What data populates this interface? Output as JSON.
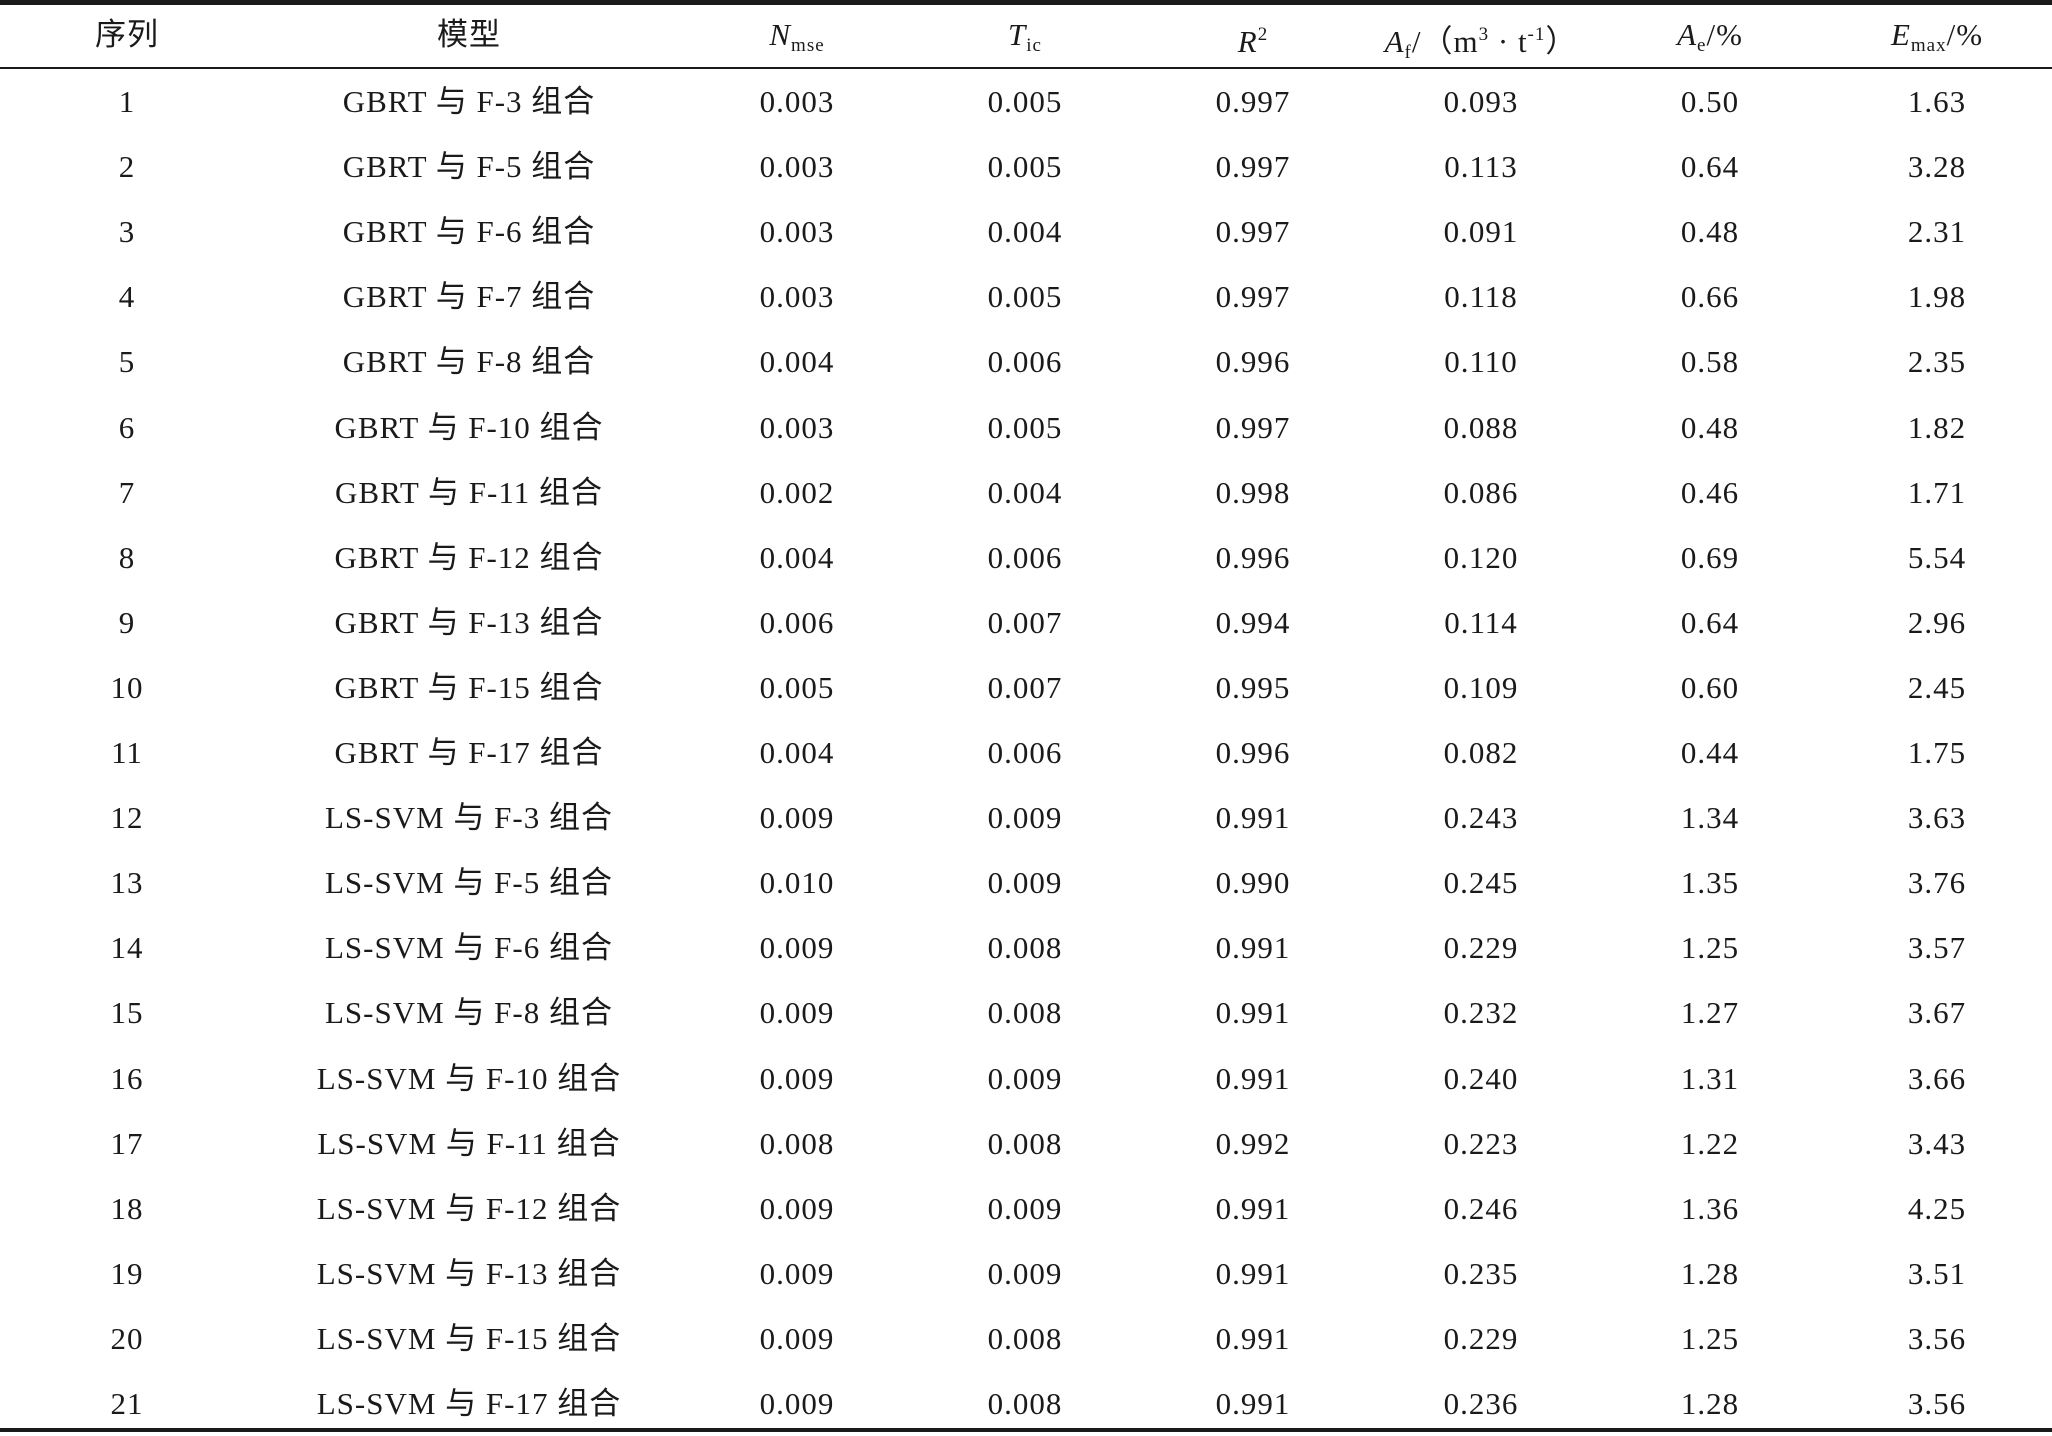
{
  "table": {
    "headers": {
      "seq": "序列",
      "model": "模型",
      "nmse_main": "N",
      "nmse_sub": "mse",
      "tic_main": "T",
      "tic_sub": "ic",
      "r2_main": "R",
      "r2_sup": "2",
      "af_main": "A",
      "af_sub": "f",
      "af_unit_a": "/（m",
      "af_unit_sup1": "3",
      "af_unit_b": " · t",
      "af_unit_sup2": "-1",
      "af_unit_c": "）",
      "ae_main": "A",
      "ae_sub": "e",
      "ae_unit": "/%",
      "emax_main": "E",
      "emax_sub": "max",
      "emax_unit": "/%"
    },
    "rows": [
      [
        "1",
        "GBRT 与 F-3 组合",
        "0.003",
        "0.005",
        "0.997",
        "0.093",
        "0.50",
        "1.63"
      ],
      [
        "2",
        "GBRT 与 F-5 组合",
        "0.003",
        "0.005",
        "0.997",
        "0.113",
        "0.64",
        "3.28"
      ],
      [
        "3",
        "GBRT 与 F-6 组合",
        "0.003",
        "0.004",
        "0.997",
        "0.091",
        "0.48",
        "2.31"
      ],
      [
        "4",
        "GBRT 与 F-7 组合",
        "0.003",
        "0.005",
        "0.997",
        "0.118",
        "0.66",
        "1.98"
      ],
      [
        "5",
        "GBRT 与 F-8 组合",
        "0.004",
        "0.006",
        "0.996",
        "0.110",
        "0.58",
        "2.35"
      ],
      [
        "6",
        "GBRT 与 F-10 组合",
        "0.003",
        "0.005",
        "0.997",
        "0.088",
        "0.48",
        "1.82"
      ],
      [
        "7",
        "GBRT 与 F-11 组合",
        "0.002",
        "0.004",
        "0.998",
        "0.086",
        "0.46",
        "1.71"
      ],
      [
        "8",
        "GBRT 与 F-12 组合",
        "0.004",
        "0.006",
        "0.996",
        "0.120",
        "0.69",
        "5.54"
      ],
      [
        "9",
        "GBRT 与 F-13 组合",
        "0.006",
        "0.007",
        "0.994",
        "0.114",
        "0.64",
        "2.96"
      ],
      [
        "10",
        "GBRT 与 F-15 组合",
        "0.005",
        "0.007",
        "0.995",
        "0.109",
        "0.60",
        "2.45"
      ],
      [
        "11",
        "GBRT 与 F-17 组合",
        "0.004",
        "0.006",
        "0.996",
        "0.082",
        "0.44",
        "1.75"
      ],
      [
        "12",
        "LS-SVM 与 F-3 组合",
        "0.009",
        "0.009",
        "0.991",
        "0.243",
        "1.34",
        "3.63"
      ],
      [
        "13",
        "LS-SVM 与 F-5 组合",
        "0.010",
        "0.009",
        "0.990",
        "0.245",
        "1.35",
        "3.76"
      ],
      [
        "14",
        "LS-SVM 与 F-6 组合",
        "0.009",
        "0.008",
        "0.991",
        "0.229",
        "1.25",
        "3.57"
      ],
      [
        "15",
        "LS-SVM 与 F-8 组合",
        "0.009",
        "0.008",
        "0.991",
        "0.232",
        "1.27",
        "3.67"
      ],
      [
        "16",
        "LS-SVM 与 F-10 组合",
        "0.009",
        "0.009",
        "0.991",
        "0.240",
        "1.31",
        "3.66"
      ],
      [
        "17",
        "LS-SVM 与 F-11 组合",
        "0.008",
        "0.008",
        "0.992",
        "0.223",
        "1.22",
        "3.43"
      ],
      [
        "18",
        "LS-SVM 与 F-12 组合",
        "0.009",
        "0.009",
        "0.991",
        "0.246",
        "1.36",
        "4.25"
      ],
      [
        "19",
        "LS-SVM 与 F-13 组合",
        "0.009",
        "0.009",
        "0.991",
        "0.235",
        "1.28",
        "3.51"
      ],
      [
        "20",
        "LS-SVM 与 F-15 组合",
        "0.009",
        "0.008",
        "0.991",
        "0.229",
        "1.25",
        "3.56"
      ],
      [
        "21",
        "LS-SVM 与 F-17 组合",
        "0.009",
        "0.008",
        "0.991",
        "0.236",
        "1.28",
        "3.56"
      ]
    ]
  }
}
